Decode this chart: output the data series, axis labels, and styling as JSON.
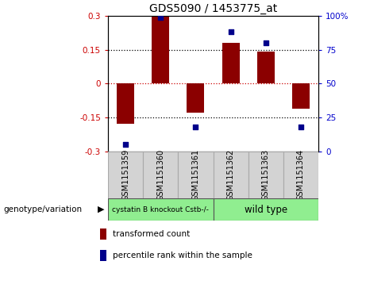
{
  "title": "GDS5090 / 1453775_at",
  "samples": [
    "GSM1151359",
    "GSM1151360",
    "GSM1151361",
    "GSM1151362",
    "GSM1151363",
    "GSM1151364"
  ],
  "bar_values": [
    -0.18,
    0.3,
    -0.13,
    0.18,
    0.14,
    -0.11
  ],
  "percentile_values": [
    5,
    99,
    18,
    88,
    80,
    18
  ],
  "bar_color": "#8B0000",
  "dot_color": "#00008B",
  "ylim_left": [
    -0.3,
    0.3
  ],
  "ylim_right": [
    0,
    100
  ],
  "yticks_left": [
    -0.3,
    -0.15,
    0,
    0.15,
    0.3
  ],
  "yticks_right": [
    0,
    25,
    50,
    75,
    100
  ],
  "ytick_labels_left": [
    "-0.3",
    "-0.15",
    "0",
    "0.15",
    "0.3"
  ],
  "ytick_labels_right": [
    "0",
    "25",
    "50",
    "75",
    "100%"
  ],
  "hline_values": [
    -0.15,
    0,
    0.15
  ],
  "group1_label": "cystatin B knockout Cstb-/-",
  "group2_label": "wild type",
  "group1_indices": [
    0,
    1,
    2
  ],
  "group2_indices": [
    3,
    4,
    5
  ],
  "group1_color": "#90EE90",
  "group2_color": "#90EE90",
  "genotype_label": "genotype/variation",
  "legend_bar_label": "transformed count",
  "legend_dot_label": "percentile rank within the sample",
  "bar_width": 0.5,
  "bg_color": "#ffffff",
  "plot_bg_color": "#ffffff",
  "tick_label_color_left": "#cc0000",
  "tick_label_color_right": "#0000cc",
  "title_fontsize": 10,
  "axis_fontsize": 7.5,
  "sample_label_fontsize": 7,
  "legend_fontsize": 7.5
}
